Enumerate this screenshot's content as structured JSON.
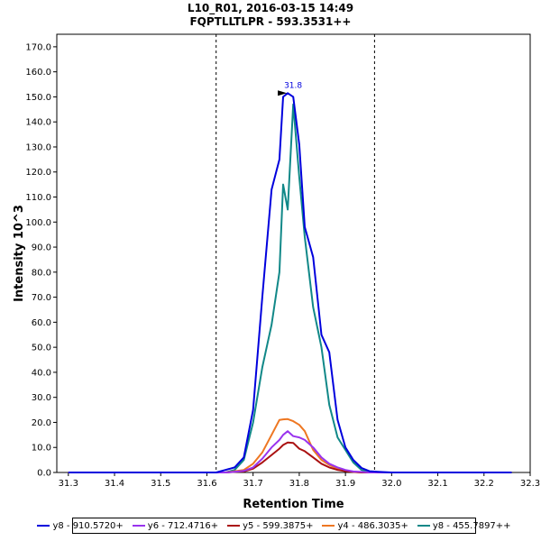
{
  "chart_data": {
    "type": "line",
    "title": "L10_R01, 2016-03-15 14:49",
    "subtitle": "FQPTLLTLPR - 593.3531++",
    "xlabel": "Retention Time",
    "ylabel": "Intensity 10^3",
    "xlim": [
      31.275,
      32.3
    ],
    "ylim": [
      0,
      175
    ],
    "x_ticks": [
      "31.3",
      "31.4",
      "31.5",
      "31.6",
      "31.7",
      "31.8",
      "31.9",
      "32.0",
      "32.1",
      "32.2",
      "32.3"
    ],
    "y_ticks": [
      "0.0",
      "10.0",
      "20.0",
      "30.0",
      "40.0",
      "50.0",
      "60.0",
      "70.0",
      "80.0",
      "90.0",
      "100.0",
      "110.0",
      "120.0",
      "130.0",
      "140.0",
      "150.0",
      "160.0",
      "170.0"
    ],
    "peak_boundaries": [
      31.62,
      31.963
    ],
    "peak_label": {
      "text": "31.8",
      "x": 31.775,
      "y": 151.5
    },
    "grid": false,
    "legend_position": "bottom",
    "x": [
      31.3,
      31.35,
      31.4,
      31.45,
      31.5,
      31.55,
      31.6,
      31.62,
      31.64,
      31.66,
      31.68,
      31.7,
      31.72,
      31.74,
      31.757,
      31.765,
      31.775,
      31.787,
      31.8,
      31.812,
      31.83,
      31.848,
      31.865,
      31.883,
      31.9,
      31.917,
      31.935,
      31.952,
      31.97,
      32.0,
      32.05,
      32.1,
      32.15,
      32.2,
      32.26
    ],
    "series": [
      {
        "name": "y8 - 910.5720+",
        "color": "#0000dd",
        "values": [
          0,
          0,
          0,
          0,
          0,
          0,
          0,
          0,
          1,
          2,
          6,
          25,
          70,
          113,
          125,
          150,
          151.5,
          150,
          131,
          98,
          86,
          55,
          48,
          21,
          10,
          5,
          1.8,
          0.5,
          0.3,
          0,
          0,
          0,
          0,
          0,
          0
        ]
      },
      {
        "name": "y6 - 712.4716+",
        "color": "#9933ee",
        "values": [
          0,
          0,
          0,
          0,
          0,
          0,
          0,
          0,
          0,
          0.3,
          0.6,
          2,
          5.5,
          10,
          13,
          15,
          16.5,
          14.5,
          14,
          13,
          10,
          6,
          3.5,
          2,
          1,
          0.4,
          0.2,
          0,
          0,
          0,
          0,
          0,
          0,
          0,
          0
        ]
      },
      {
        "name": "y5 - 599.3875+",
        "color": "#aa1111",
        "values": [
          0,
          0,
          0,
          0,
          0,
          0,
          0,
          0,
          0,
          0.2,
          0.4,
          1.5,
          4,
          7,
          9.5,
          11,
          12,
          11.8,
          9.5,
          8.5,
          6,
          3.5,
          2,
          1,
          0.5,
          0.2,
          0,
          0,
          0,
          0,
          0,
          0,
          0,
          0,
          0
        ]
      },
      {
        "name": "y4 - 486.3035+",
        "color": "#ee7722",
        "values": [
          0,
          0,
          0,
          0,
          0,
          0,
          0,
          0,
          0,
          0.5,
          1,
          3.5,
          8,
          15,
          21,
          21.2,
          21.3,
          20.5,
          19,
          16.5,
          9,
          5,
          3,
          1.5,
          0.8,
          0.3,
          0,
          0,
          0,
          0,
          0,
          0,
          0,
          0,
          0
        ]
      },
      {
        "name": "y8 - 455.7897++",
        "color": "#118888",
        "values": [
          0,
          0,
          0,
          0,
          0,
          0,
          0,
          0,
          0,
          1,
          5,
          20,
          42,
          59,
          80,
          115,
          105,
          147,
          118,
          94,
          66,
          50,
          27,
          14,
          9,
          4,
          1,
          0.3,
          0,
          0,
          0,
          0,
          0,
          0,
          0
        ]
      }
    ]
  }
}
